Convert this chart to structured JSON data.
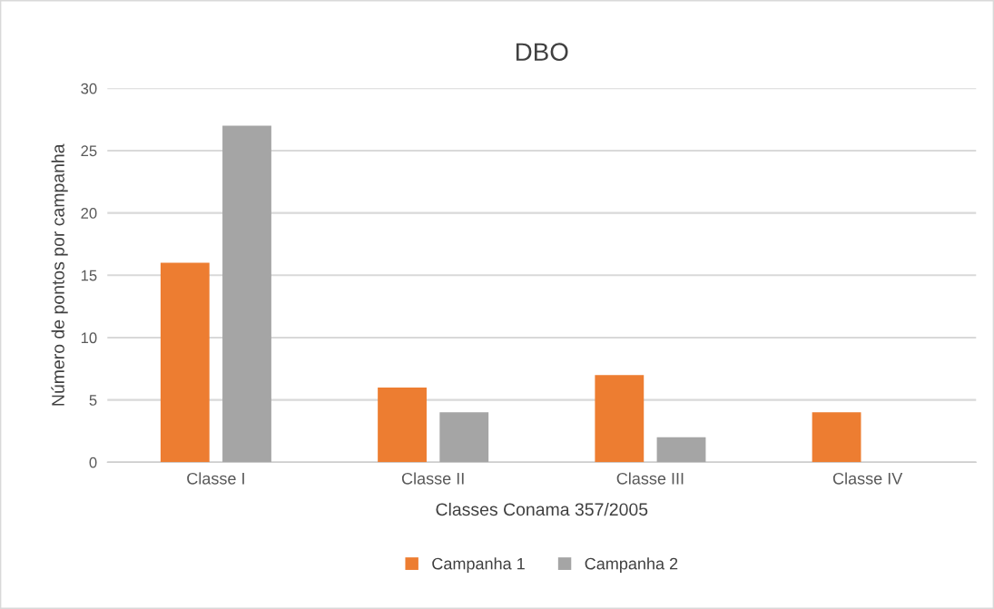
{
  "chart_data": {
    "type": "bar",
    "title": "DBO",
    "xlabel": "Classes Conama 357/2005",
    "ylabel": "Número de pontos por campanha",
    "categories": [
      "Classe I",
      "Classe II",
      "Classe III",
      "Classe IV"
    ],
    "series": [
      {
        "name": "Campanha 1",
        "color": "#ed7d31",
        "values": [
          16,
          6,
          7,
          4
        ]
      },
      {
        "name": "Campanha 2",
        "color": "#a5a5a5",
        "values": [
          27,
          4,
          2,
          0
        ]
      }
    ],
    "ylim": [
      0,
      30
    ],
    "yticks": [
      0,
      5,
      10,
      15,
      20,
      25,
      30
    ],
    "grid": "y",
    "legend": "bottom"
  }
}
